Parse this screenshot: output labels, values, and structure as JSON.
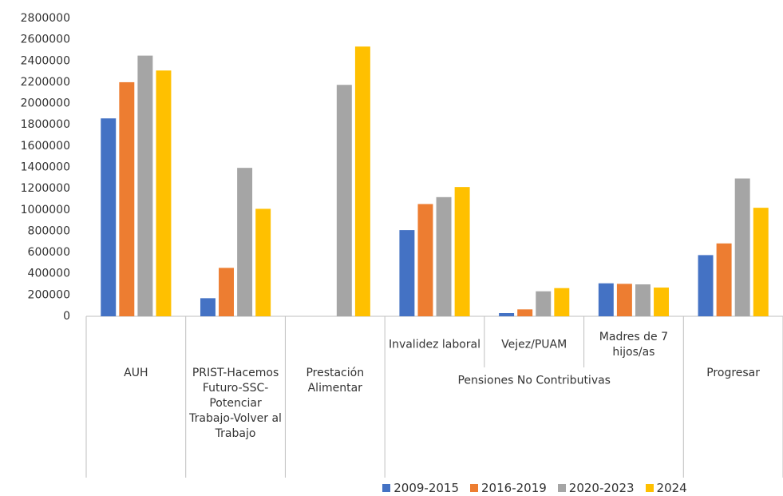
{
  "chart_data": {
    "type": "bar",
    "categories": [
      "AUH",
      "PRIST-Hacemos Futuro-SSC-Potenciar Trabajo-Volver al Trabajo",
      "Prestación Alimentar",
      "Invalidez laboral",
      "Vejez/PUAM",
      "Madres de 7 hijos/as",
      "Progresar"
    ],
    "category_groups": [
      {
        "label": "Pensiones No Contributivas",
        "categories": [
          3,
          4,
          5
        ]
      }
    ],
    "series": [
      {
        "name": "2009-2015",
        "color": "#4472c4",
        "values": [
          1860000,
          170000,
          null,
          810000,
          30000,
          310000,
          575000
        ]
      },
      {
        "name": "2016-2019",
        "color": "#ed7d31",
        "values": [
          2200000,
          455000,
          null,
          1055000,
          65000,
          305000,
          685000
        ]
      },
      {
        "name": "2020-2023",
        "color": "#a5a5a5",
        "values": [
          2450000,
          1395000,
          2175000,
          1120000,
          235000,
          300000,
          1295000
        ]
      },
      {
        "name": "2024",
        "color": "#ffc000",
        "values": [
          2310000,
          1010000,
          2535000,
          1215000,
          265000,
          270000,
          1020000
        ]
      }
    ],
    "ylim": [
      0,
      2800000
    ],
    "yticks": [
      0,
      200000,
      400000,
      600000,
      800000,
      1000000,
      1200000,
      1400000,
      1600000,
      1800000,
      2000000,
      2200000,
      2400000,
      2600000,
      2800000
    ],
    "grid": false,
    "legend": "bottom"
  }
}
